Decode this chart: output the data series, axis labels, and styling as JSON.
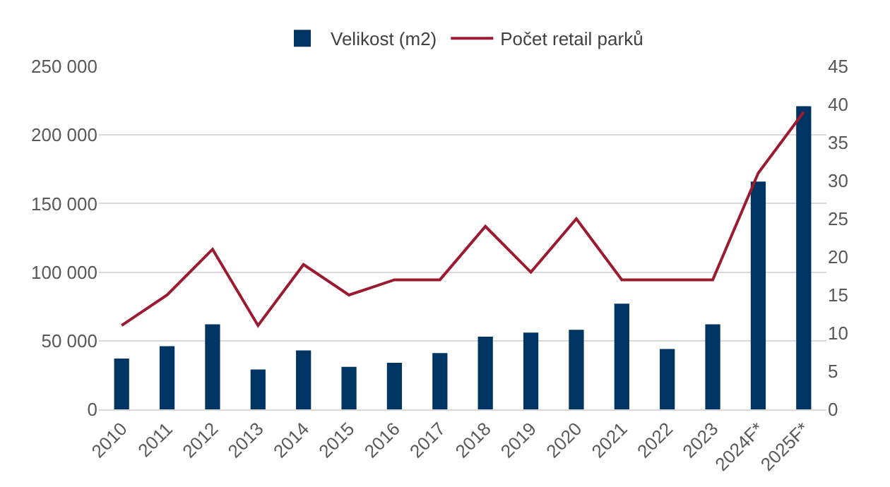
{
  "chart_data": {
    "type": "bar",
    "categories": [
      "2010",
      "2011",
      "2012",
      "2013",
      "2014",
      "2015",
      "2016",
      "2017",
      "2018",
      "2019",
      "2020",
      "2021",
      "2022",
      "2023",
      "2024F*",
      "2025F*"
    ],
    "series": [
      {
        "name": "Velikost (m2)",
        "color": "#003462",
        "values": [
          37000,
          46000,
          62000,
          29000,
          43000,
          31000,
          34000,
          41000,
          53000,
          56000,
          58000,
          77000,
          44000,
          62000,
          166000,
          221000
        ]
      },
      {
        "name": "Počet retail parků",
        "type": "line",
        "axis": "y2",
        "color": "#9b1b30",
        "values": [
          11,
          15,
          21,
          11,
          19,
          15,
          17,
          17,
          24,
          18,
          25,
          17,
          17,
          17,
          31,
          39
        ]
      }
    ],
    "ylim": [
      0,
      250000
    ],
    "yticks": [
      {
        "value": 0,
        "label": "0"
      },
      {
        "value": 50000,
        "label": "50 000"
      },
      {
        "value": 100000,
        "label": "100 000"
      },
      {
        "value": 150000,
        "label": "150 000"
      },
      {
        "value": 200000,
        "label": "200 000"
      },
      {
        "value": 250000,
        "label": "250 000"
      }
    ],
    "y2lim": [
      0,
      45
    ],
    "y2ticks": [
      0,
      5,
      10,
      15,
      20,
      25,
      30,
      35,
      40,
      45
    ],
    "grid": "y",
    "legend": "top",
    "marker": "none",
    "line_style": "solid"
  }
}
